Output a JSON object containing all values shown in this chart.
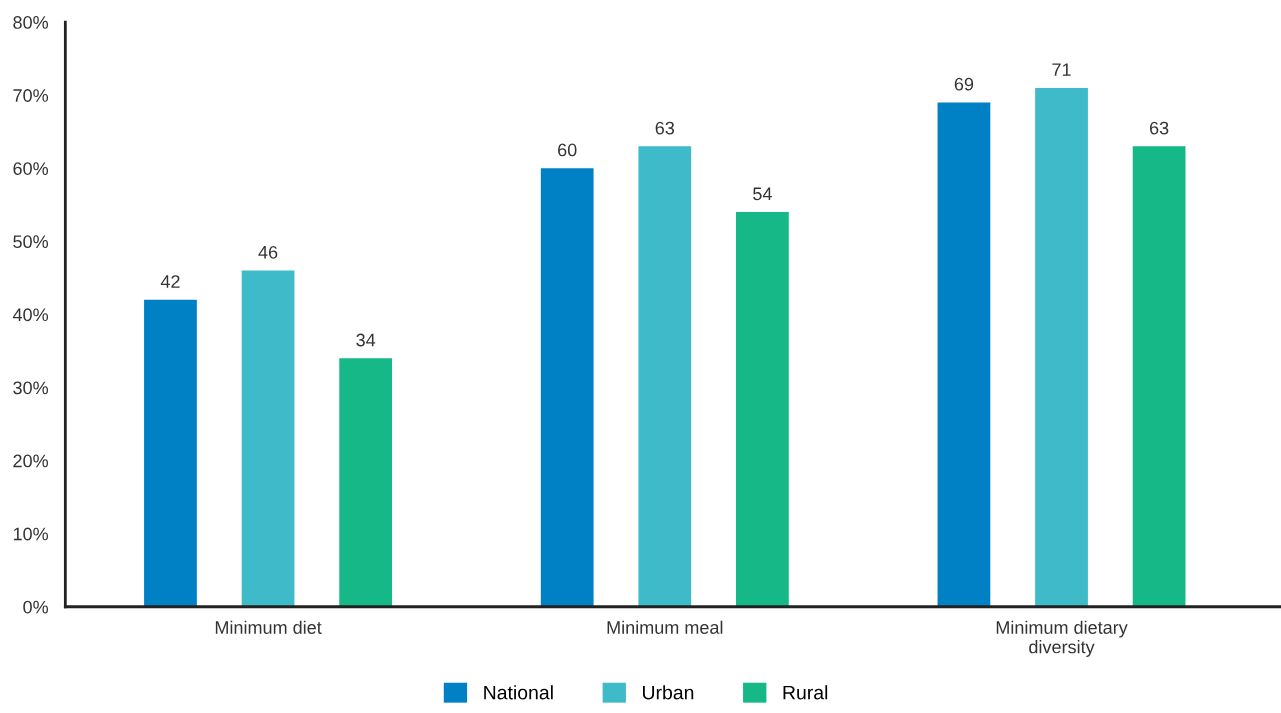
{
  "chart_data": {
    "type": "bar",
    "categories": [
      "Minimum diet",
      "Minimum meal",
      "Minimum dietary\ndiversity"
    ],
    "series": [
      {
        "name": "National",
        "color": "#0081c6",
        "values": [
          42,
          60,
          69
        ]
      },
      {
        "name": "Urban",
        "color": "#3fbac9",
        "values": [
          46,
          63,
          71
        ]
      },
      {
        "name": "Rural",
        "color": "#15b886",
        "values": [
          34,
          54,
          63
        ]
      }
    ],
    "ylim": [
      0,
      80
    ],
    "yticks": [
      {
        "value": 0,
        "label": "0%"
      },
      {
        "value": 10,
        "label": "10%"
      },
      {
        "value": 20,
        "label": "20%"
      },
      {
        "value": 30,
        "label": "30%"
      },
      {
        "value": 40,
        "label": "40%"
      },
      {
        "value": 50,
        "label": "50%"
      },
      {
        "value": 60,
        "label": "60%"
      },
      {
        "value": 70,
        "label": "70%"
      },
      {
        "value": 80,
        "label": "80%"
      }
    ],
    "data_labels": true,
    "grid": false,
    "legend": "bottom"
  }
}
